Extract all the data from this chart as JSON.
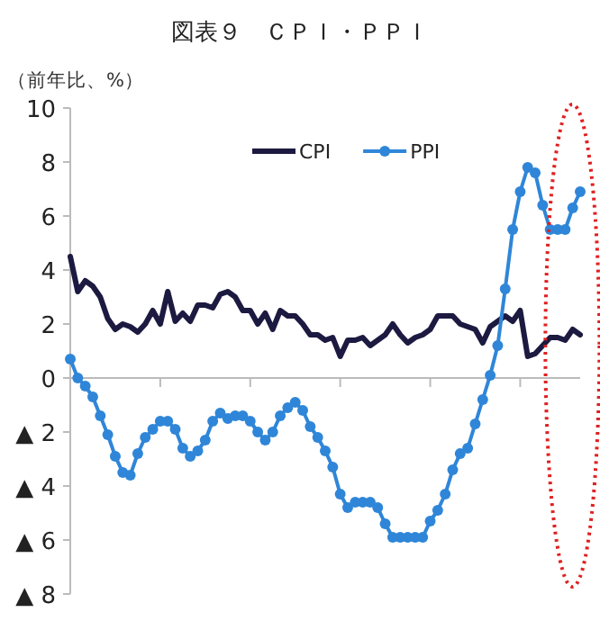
{
  "chart_data": {
    "type": "line",
    "title": "図表９　ＣＰＩ・ＰＰＩ",
    "ylabel": "（前年比、%）",
    "categories": [
      null,
      null,
      null,
      null,
      null,
      null,
      null,
      null,
      null,
      null,
      null,
      null,
      null,
      null,
      null,
      null,
      null,
      null,
      null,
      null,
      null,
      null,
      null,
      null,
      null,
      null,
      null,
      null,
      null,
      null,
      null,
      null,
      null,
      null,
      null,
      null,
      null,
      null,
      null,
      null,
      null,
      null,
      null,
      null,
      null,
      null,
      null,
      null,
      null,
      null,
      null,
      null,
      null,
      null,
      null,
      null,
      null,
      null,
      null,
      null,
      null,
      null,
      null,
      null,
      null,
      null,
      null,
      null,
      null
    ],
    "series": [
      {
        "name": "CPI",
        "color": "#1c1a40",
        "marker": "none",
        "values": [
          4.5,
          3.2,
          3.6,
          3.4,
          3.0,
          2.2,
          1.8,
          2.0,
          1.9,
          1.7,
          2.0,
          2.5,
          2.0,
          3.2,
          2.1,
          2.4,
          2.1,
          2.7,
          2.7,
          2.6,
          3.1,
          3.2,
          3.0,
          2.5,
          2.5,
          2.0,
          2.4,
          1.8,
          2.5,
          2.3,
          2.3,
          2.0,
          1.6,
          1.6,
          1.4,
          1.5,
          0.8,
          1.4,
          1.4,
          1.5,
          1.2,
          1.4,
          1.6,
          2.0,
          1.6,
          1.3,
          1.5,
          1.6,
          1.8,
          2.3,
          2.3,
          2.3,
          2.0,
          1.9,
          1.8,
          1.3,
          1.9,
          2.1,
          2.3,
          2.1,
          2.5,
          0.8,
          0.9,
          1.2,
          1.5,
          1.5,
          1.4,
          1.8,
          1.6
        ]
      },
      {
        "name": "PPI",
        "color": "#2f86d8",
        "marker": "circle",
        "values": [
          0.7,
          0.0,
          -0.3,
          -0.7,
          -1.4,
          -2.1,
          -2.9,
          -3.5,
          -3.6,
          -2.8,
          -2.2,
          -1.9,
          -1.6,
          -1.6,
          -1.9,
          -2.6,
          -2.9,
          -2.7,
          -2.3,
          -1.6,
          -1.3,
          -1.5,
          -1.4,
          -1.4,
          -1.6,
          -2.0,
          -2.3,
          -2.0,
          -1.4,
          -1.1,
          -0.9,
          -1.2,
          -1.8,
          -2.2,
          -2.7,
          -3.3,
          -4.3,
          -4.8,
          -4.6,
          -4.6,
          -4.6,
          -4.8,
          -5.4,
          -5.9,
          -5.9,
          -5.9,
          -5.9,
          -5.9,
          -5.3,
          -4.9,
          -4.3,
          -3.4,
          -2.8,
          -2.6,
          -1.7,
          -0.8,
          0.1,
          1.2,
          3.3,
          5.5,
          6.9,
          7.8,
          7.6,
          6.4,
          5.5,
          5.5,
          5.5,
          6.3,
          6.9
        ]
      }
    ],
    "ylim": [
      -8,
      10
    ],
    "yticks": [
      {
        "value": -8,
        "label": "▲ 8"
      },
      {
        "value": -6,
        "label": "▲ 6"
      },
      {
        "value": -4,
        "label": "▲ 4"
      },
      {
        "value": -2,
        "label": "▲ 2"
      },
      0,
      2,
      4,
      6,
      8,
      10
    ],
    "legend": "top",
    "line_style": "solid"
  }
}
